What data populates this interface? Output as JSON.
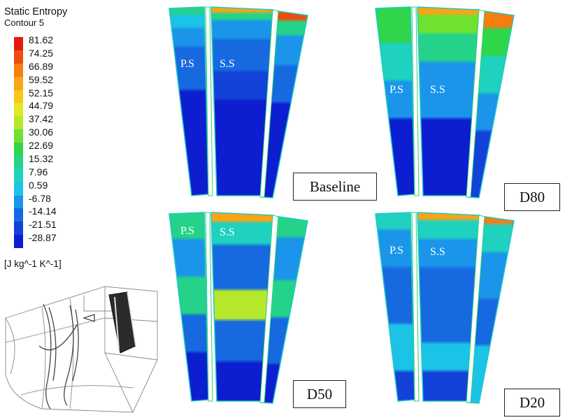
{
  "legend": {
    "title": "Static Entropy",
    "subtitle": "Contour 5",
    "units": "[J kg^-1 K^-1]",
    "ticks": [
      "81.62",
      "74.25",
      "66.89",
      "59.52",
      "52.15",
      "44.79",
      "37.42",
      "30.06",
      "22.69",
      "15.32",
      "7.96",
      "0.59",
      "-6.78",
      "-14.14",
      "-21.51",
      "-28.87"
    ],
    "colors": [
      "#e41a0e",
      "#ee4d0c",
      "#f67d10",
      "#faa416",
      "#f5c81a",
      "#e3e81f",
      "#b5e82a",
      "#6fe22f",
      "#2fd64a",
      "#24d389",
      "#1fd2c0",
      "#1bc4e6",
      "#1a95ea",
      "#1769e0",
      "#1342d9",
      "#0c1ed0"
    ]
  },
  "panels": [
    {
      "case": "Baseline",
      "ps": "P.S",
      "ss": "S.S"
    },
    {
      "case": "D80",
      "ps": "P.S",
      "ss": "S.S"
    },
    {
      "case": "D50",
      "ps": "P.S",
      "ss": "S.S"
    },
    {
      "case": "D20",
      "ps": "P.S",
      "ss": "S.S"
    }
  ]
}
